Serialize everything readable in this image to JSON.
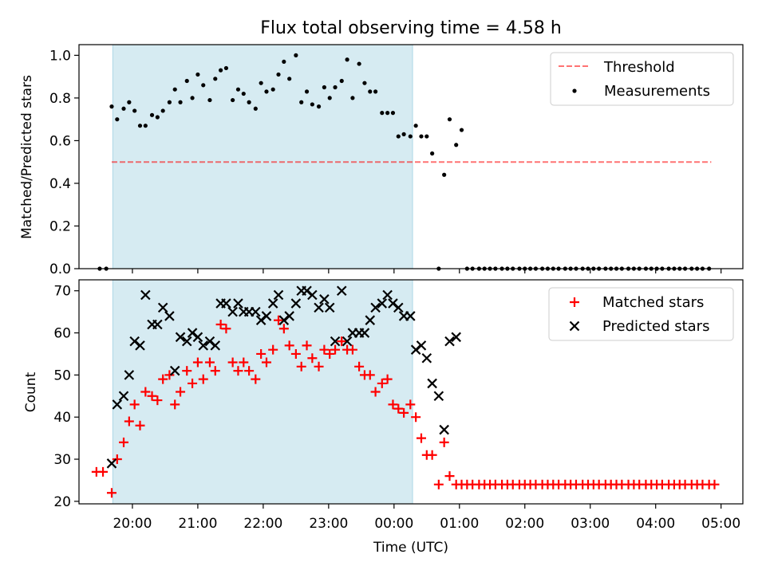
{
  "title": "Flux total observing time = 4.58 h",
  "colors": {
    "shade": "#add8e6",
    "threshold": "#ff0000",
    "measurement": "#000000",
    "matched": "#ff0000",
    "predicted": "#000000"
  },
  "chart_data": [
    {
      "type": "scatter",
      "ylabel": "Matched/Predicted stars",
      "ylim": [
        0,
        1.05
      ],
      "xlim": [
        "19:11",
        "05:20"
      ],
      "yticks": [
        0.0,
        0.2,
        0.4,
        0.6,
        0.8,
        1.0
      ],
      "ytick_labels": [
        "0.0",
        "0.2",
        "0.4",
        "0.6",
        "0.8",
        "1.0"
      ],
      "shaded_interval": [
        "19:42",
        "00:17"
      ],
      "legend_position": "top-right",
      "threshold": {
        "name": "Threshold",
        "value": 0.5,
        "x_range": [
          "19:41",
          "04:51"
        ],
        "style": "dashed"
      },
      "series": [
        {
          "name": "Measurements",
          "x": [
            "19:30",
            "19:36",
            "19:41",
            "19:46",
            "19:52",
            "19:57",
            "20:02",
            "20:07",
            "20:12",
            "20:18",
            "20:23",
            "20:28",
            "20:34",
            "20:39",
            "20:44",
            "20:50",
            "20:55",
            "21:00",
            "21:05",
            "21:11",
            "21:16",
            "21:21",
            "21:26",
            "21:32",
            "21:37",
            "21:42",
            "21:47",
            "21:53",
            "21:58",
            "22:03",
            "22:09",
            "22:14",
            "22:19",
            "22:24",
            "22:30",
            "22:35",
            "22:40",
            "22:45",
            "22:51",
            "22:56",
            "23:01",
            "23:06",
            "23:12",
            "23:17",
            "23:22",
            "23:28",
            "23:33",
            "23:38",
            "23:43",
            "23:49",
            "23:54",
            "23:59",
            "00:04",
            "00:09",
            "00:15",
            "00:20",
            "00:25",
            "00:30",
            "00:35",
            "00:41",
            "00:46",
            "00:51",
            "00:57",
            "01:02",
            "01:07",
            "01:12",
            "01:18",
            "01:23",
            "01:28",
            "01:33",
            "01:39",
            "01:44",
            "01:49",
            "01:55",
            "02:00",
            "02:05",
            "02:10",
            "02:16",
            "02:21",
            "02:26",
            "02:31",
            "02:37",
            "02:42",
            "02:47",
            "02:53",
            "02:58",
            "03:03",
            "03:08",
            "03:14",
            "03:19",
            "03:24",
            "03:29",
            "03:35",
            "03:40",
            "03:45",
            "03:51",
            "03:56",
            "04:01",
            "04:06",
            "04:12",
            "04:17",
            "04:22",
            "04:27",
            "04:33",
            "04:38",
            "04:43",
            "04:49"
          ],
          "y": [
            0.0,
            0.0,
            0.76,
            0.7,
            0.75,
            0.78,
            0.74,
            0.67,
            0.67,
            0.72,
            0.71,
            0.74,
            0.78,
            0.84,
            0.78,
            0.88,
            0.8,
            0.91,
            0.86,
            0.79,
            0.89,
            0.93,
            0.94,
            0.79,
            0.84,
            0.82,
            0.78,
            0.75,
            0.87,
            0.83,
            0.84,
            0.91,
            0.97,
            0.89,
            1.0,
            0.78,
            0.83,
            0.77,
            0.76,
            0.85,
            0.8,
            0.85,
            0.88,
            0.98,
            0.8,
            0.96,
            0.87,
            0.83,
            0.83,
            0.73,
            0.73,
            0.73,
            0.62,
            0.63,
            0.62,
            0.67,
            0.62,
            0.62,
            0.54,
            0.0,
            0.44,
            0.7,
            0.58,
            0.65,
            0.0,
            0.0,
            0.0,
            0.0,
            0.0,
            0.0,
            0.0,
            0.0,
            0.0,
            0.0,
            0.0,
            0.0,
            0.0,
            0.0,
            0.0,
            0.0,
            0.0,
            0.0,
            0.0,
            0.0,
            0.0,
            0.0,
            0.0,
            0.0,
            0.0,
            0.0,
            0.0,
            0.0,
            0.0,
            0.0,
            0.0,
            0.0,
            0.0,
            0.0,
            0.0,
            0.0,
            0.0,
            0.0,
            0.0,
            0.0,
            0.0,
            0.0,
            0.0
          ]
        }
      ]
    },
    {
      "type": "scatter",
      "xlabel": "Time (UTC)",
      "ylabel": "Count",
      "ylim": [
        19.4,
        72.6
      ],
      "xlim": [
        "19:11",
        "05:20"
      ],
      "yticks": [
        20,
        30,
        40,
        50,
        60,
        70
      ],
      "ytick_labels": [
        "20",
        "30",
        "40",
        "50",
        "60",
        "70"
      ],
      "xticks": [
        "20:00",
        "21:00",
        "22:00",
        "23:00",
        "00:00",
        "01:00",
        "02:00",
        "03:00",
        "04:00",
        "05:00"
      ],
      "shaded_interval": [
        "19:42",
        "00:17"
      ],
      "legend_position": "top-right",
      "series": [
        {
          "name": "Matched stars",
          "marker": "+",
          "x": [
            "19:27",
            "19:33",
            "19:41",
            "19:46",
            "19:52",
            "19:57",
            "20:02",
            "20:07",
            "20:12",
            "20:18",
            "20:23",
            "20:28",
            "20:34",
            "20:39",
            "20:44",
            "20:50",
            "20:55",
            "21:00",
            "21:05",
            "21:11",
            "21:16",
            "21:21",
            "21:26",
            "21:32",
            "21:37",
            "21:42",
            "21:47",
            "21:53",
            "21:58",
            "22:03",
            "22:09",
            "22:14",
            "22:19",
            "22:24",
            "22:30",
            "22:35",
            "22:40",
            "22:45",
            "22:51",
            "22:56",
            "23:01",
            "23:06",
            "23:12",
            "23:17",
            "23:22",
            "23:28",
            "23:33",
            "23:38",
            "23:43",
            "23:49",
            "23:54",
            "23:59",
            "00:04",
            "00:09",
            "00:15",
            "00:20",
            "00:25",
            "00:30",
            "00:35",
            "00:41",
            "00:46",
            "00:51",
            "00:57",
            "01:02",
            "01:07",
            "01:12",
            "01:18",
            "01:23",
            "01:28",
            "01:33",
            "01:39",
            "01:44",
            "01:49",
            "01:55",
            "02:00",
            "02:05",
            "02:10",
            "02:16",
            "02:21",
            "02:26",
            "02:31",
            "02:37",
            "02:42",
            "02:47",
            "02:53",
            "02:58",
            "03:03",
            "03:08",
            "03:14",
            "03:19",
            "03:24",
            "03:29",
            "03:35",
            "03:40",
            "03:45",
            "03:51",
            "03:56",
            "04:01",
            "04:06",
            "04:12",
            "04:17",
            "04:22",
            "04:27",
            "04:33",
            "04:38",
            "04:43",
            "04:49",
            "04:54"
          ],
          "y": [
            27,
            27,
            22,
            30,
            34,
            39,
            43,
            38,
            46,
            45,
            44,
            49,
            50,
            43,
            46,
            51,
            48,
            53,
            49,
            53,
            51,
            62,
            61,
            53,
            51,
            53,
            51,
            49,
            55,
            53,
            56,
            63,
            61,
            57,
            55,
            52,
            57,
            54,
            52,
            56,
            55,
            56,
            58,
            56,
            56,
            52,
            50,
            50,
            46,
            48,
            49,
            43,
            42,
            41,
            43,
            40,
            35,
            31,
            31,
            24,
            34,
            26,
            24,
            24,
            24,
            24,
            24,
            24,
            24,
            24,
            24,
            24,
            24,
            24,
            24,
            24,
            24,
            24,
            24,
            24,
            24,
            24,
            24,
            24,
            24,
            24,
            24,
            24,
            24,
            24,
            24,
            24,
            24,
            24,
            24,
            24,
            24,
            24,
            24,
            24,
            24,
            24,
            24,
            24,
            24,
            24,
            24,
            24
          ]
        },
        {
          "name": "Predicted stars",
          "marker": "x",
          "x": [
            "19:41",
            "19:46",
            "19:52",
            "19:57",
            "20:02",
            "20:07",
            "20:12",
            "20:18",
            "20:23",
            "20:28",
            "20:34",
            "20:39",
            "20:44",
            "20:50",
            "20:55",
            "21:00",
            "21:05",
            "21:11",
            "21:16",
            "21:21",
            "21:26",
            "21:32",
            "21:37",
            "21:42",
            "21:47",
            "21:53",
            "21:58",
            "22:03",
            "22:09",
            "22:14",
            "22:19",
            "22:24",
            "22:30",
            "22:35",
            "22:40",
            "22:45",
            "22:51",
            "22:56",
            "23:01",
            "23:06",
            "23:12",
            "23:17",
            "23:22",
            "23:28",
            "23:33",
            "23:38",
            "23:43",
            "23:49",
            "23:54",
            "23:59",
            "00:04",
            "00:09",
            "00:15",
            "00:20",
            "00:25",
            "00:30",
            "00:35",
            "00:41",
            "00:46",
            "00:51",
            "00:57"
          ],
          "y": [
            29,
            43,
            45,
            50,
            58,
            57,
            69,
            62,
            62,
            66,
            64,
            51,
            59,
            58,
            60,
            59,
            57,
            58,
            57,
            67,
            67,
            65,
            67,
            65,
            65,
            65,
            63,
            64,
            67,
            69,
            63,
            64,
            67,
            70,
            70,
            69,
            66,
            68,
            66,
            58,
            70,
            58,
            60,
            60,
            60,
            63,
            66,
            67,
            69,
            67,
            66,
            64,
            64,
            56,
            57,
            54,
            48,
            45,
            37,
            58,
            59
          ]
        }
      ]
    }
  ]
}
